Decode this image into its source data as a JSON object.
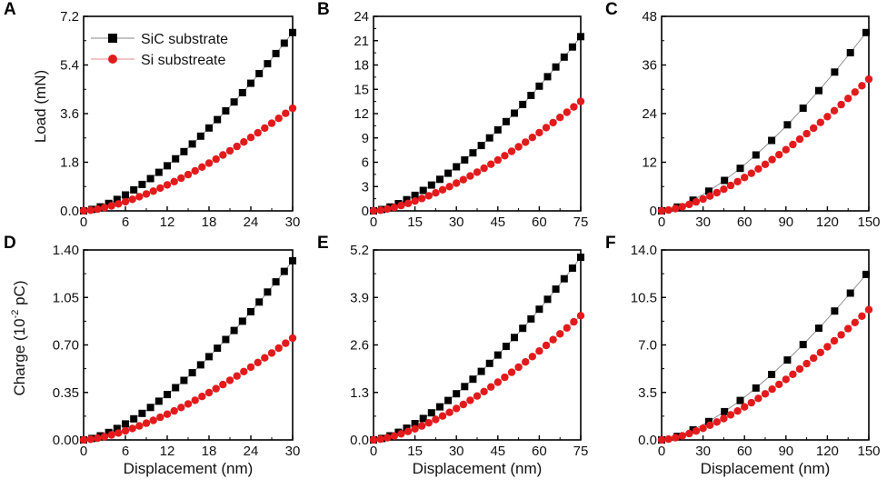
{
  "colors": {
    "sic": "#000000",
    "si": "#e31a1c",
    "sic_line": "#888888",
    "si_line": "#e88a8a"
  },
  "legend": {
    "sic": "SiC substrate",
    "si": "Si substreate"
  },
  "labels": {
    "load": "Load (mN)",
    "charge_prefix": "Charge (10",
    "charge_exp": "-2",
    "charge_suffix": " pC)",
    "displacement": "Displacement (nm)"
  },
  "chart_data": [
    {
      "panel": "A",
      "type": "scatter",
      "xlabel": "",
      "ylabel": "Load (mN)",
      "xlim": [
        0,
        30
      ],
      "ylim": [
        0,
        7.2
      ],
      "xticks": [
        "0",
        "6",
        "12",
        "18",
        "24",
        "30"
      ],
      "yticks": [
        "0.0",
        "1.8",
        "3.6",
        "5.4",
        "7.2"
      ],
      "series": [
        {
          "name": "SiC substrate",
          "exponent": 1.5,
          "x_end": 30,
          "y_end": 6.6,
          "points": 26
        },
        {
          "name": "Si substreate",
          "exponent": 1.5,
          "x_end": 30,
          "y_end": 3.8,
          "points": 31
        }
      ]
    },
    {
      "panel": "B",
      "type": "scatter",
      "xlabel": "",
      "ylabel": "",
      "xlim": [
        0,
        75
      ],
      "ylim": [
        0,
        24
      ],
      "xticks": [
        "0",
        "15",
        "30",
        "45",
        "60",
        "75"
      ],
      "yticks": [
        "0",
        "3",
        "6",
        "9",
        "12",
        "15",
        "18",
        "21",
        "24"
      ],
      "series": [
        {
          "name": "SiC substrate",
          "exponent": 1.5,
          "x_end": 75,
          "y_end": 21.5,
          "points": 26
        },
        {
          "name": "Si substreate",
          "exponent": 1.5,
          "x_end": 75,
          "y_end": 13.5,
          "points": 31
        }
      ]
    },
    {
      "panel": "C",
      "type": "scatter",
      "xlabel": "",
      "ylabel": "",
      "xlim": [
        0,
        150
      ],
      "ylim": [
        0,
        48
      ],
      "xticks": [
        "0",
        "30",
        "60",
        "90",
        "120",
        "150"
      ],
      "yticks": [
        "0",
        "12",
        "24",
        "36",
        "48"
      ],
      "series": [
        {
          "name": "SiC substrate",
          "exponent": 1.5,
          "x_end": 148,
          "y_end": 44,
          "points": 14
        },
        {
          "name": "Si substreate",
          "exponent": 1.5,
          "x_end": 150,
          "y_end": 32.5,
          "points": 31
        }
      ]
    },
    {
      "panel": "D",
      "type": "scatter",
      "xlabel": "Displacement (nm)",
      "ylabel": "Charge (10-2 pC)",
      "xlim": [
        0,
        30
      ],
      "ylim": [
        0,
        1.4
      ],
      "xticks": [
        "0",
        "6",
        "12",
        "18",
        "24",
        "30"
      ],
      "yticks": [
        "0.00",
        "0.35",
        "0.70",
        "1.05",
        "1.40"
      ],
      "series": [
        {
          "name": "SiC substrate",
          "exponent": 1.5,
          "x_end": 30,
          "y_end": 1.32,
          "points": 26
        },
        {
          "name": "Si substreate",
          "exponent": 1.5,
          "x_end": 30,
          "y_end": 0.75,
          "points": 31
        }
      ]
    },
    {
      "panel": "E",
      "type": "scatter",
      "xlabel": "Displacement (nm)",
      "ylabel": "",
      "xlim": [
        0,
        75
      ],
      "ylim": [
        0,
        5.2
      ],
      "xticks": [
        "0",
        "15",
        "30",
        "45",
        "60",
        "75"
      ],
      "yticks": [
        "0.0",
        "1.3",
        "2.6",
        "3.9",
        "5.2"
      ],
      "series": [
        {
          "name": "SiC substrate",
          "exponent": 1.5,
          "x_end": 75,
          "y_end": 5.0,
          "points": 26
        },
        {
          "name": "Si substreate",
          "exponent": 1.5,
          "x_end": 75,
          "y_end": 3.4,
          "points": 31
        }
      ]
    },
    {
      "panel": "F",
      "type": "scatter",
      "xlabel": "Displacement (nm)",
      "ylabel": "",
      "xlim": [
        0,
        150
      ],
      "ylim": [
        0,
        14
      ],
      "xticks": [
        "0",
        "30",
        "60",
        "90",
        "120",
        "150"
      ],
      "yticks": [
        "0.0",
        "3.5",
        "7.0",
        "10.5",
        "14.0"
      ],
      "series": [
        {
          "name": "SiC substrate",
          "exponent": 1.5,
          "x_end": 148,
          "y_end": 12.2,
          "points": 14
        },
        {
          "name": "Si substreate",
          "exponent": 1.5,
          "x_end": 150,
          "y_end": 9.6,
          "points": 31
        }
      ]
    }
  ]
}
